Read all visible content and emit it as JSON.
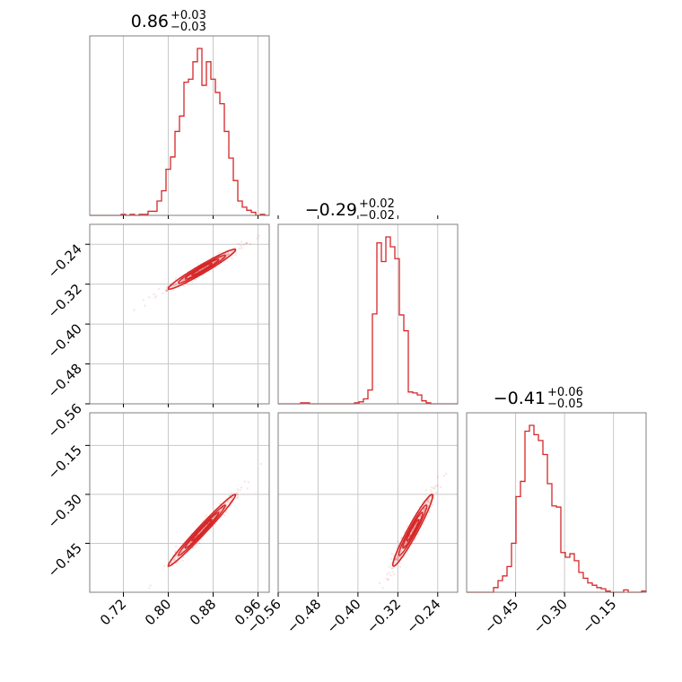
{
  "chart_data": {
    "type": "corner",
    "color": "#d62728",
    "grid": true,
    "parameters": [
      {
        "title_value": "0.86",
        "title_plus": "+0.03",
        "title_minus": "−0.03",
        "range": [
          0.66,
          0.98
        ],
        "ticks": [
          0.72,
          0.8,
          0.88,
          0.96
        ],
        "ticklabels": [
          "0.72",
          "0.80",
          "0.88",
          "0.96"
        ]
      },
      {
        "title_value": "−0.29",
        "title_plus": "+0.02",
        "title_minus": "−0.02",
        "range": [
          -0.56,
          -0.2
        ],
        "ticks": [
          -0.56,
          -0.48,
          -0.4,
          -0.32,
          -0.24
        ],
        "ticklabels": [
          "−0.56",
          "−0.48",
          "−0.40",
          "−0.32",
          "−0.24"
        ]
      },
      {
        "title_value": "−0.41",
        "title_plus": "+0.06",
        "title_minus": "−0.05",
        "range": [
          -0.6,
          -0.05
        ],
        "ticks": [
          -0.45,
          -0.3,
          -0.15
        ],
        "ticklabels": [
          "−0.45",
          "−0.30",
          "−0.15"
        ]
      }
    ],
    "histograms": [
      {
        "param": 0,
        "bins": 40,
        "counts": [
          0,
          0,
          0,
          0,
          0,
          0,
          0,
          1,
          0,
          1,
          0,
          1,
          1,
          4,
          4,
          14,
          24,
          45,
          57,
          82,
          97,
          130,
          133,
          150,
          163,
          127,
          150,
          133,
          120,
          109,
          82,
          56,
          34,
          14,
          8,
          5,
          3,
          0,
          1,
          0
        ]
      },
      {
        "param": 1,
        "bins": 40,
        "counts": [
          0,
          0,
          0,
          0,
          0,
          1,
          1,
          0,
          0,
          0,
          0,
          0,
          0,
          0,
          0,
          0,
          0,
          1,
          2,
          5,
          14,
          91,
          163,
          144,
          169,
          159,
          147,
          90,
          74,
          12,
          11,
          9,
          3,
          1,
          0,
          0,
          0,
          0,
          0,
          0
        ]
      },
      {
        "param": 2,
        "bins": 40,
        "counts": [
          0,
          0,
          0,
          0,
          0,
          0,
          4,
          10,
          14,
          22,
          42,
          82,
          95,
          138,
          143,
          135,
          130,
          118,
          93,
          74,
          73,
          34,
          30,
          33,
          27,
          17,
          12,
          8,
          6,
          4,
          3,
          1,
          0,
          0,
          0,
          2,
          0,
          0,
          0,
          1
        ]
      }
    ],
    "pairs": [
      {
        "x_param": 0,
        "y_param": 1
      },
      {
        "x_param": 0,
        "y_param": 2
      },
      {
        "x_param": 1,
        "y_param": 2
      }
    ]
  }
}
